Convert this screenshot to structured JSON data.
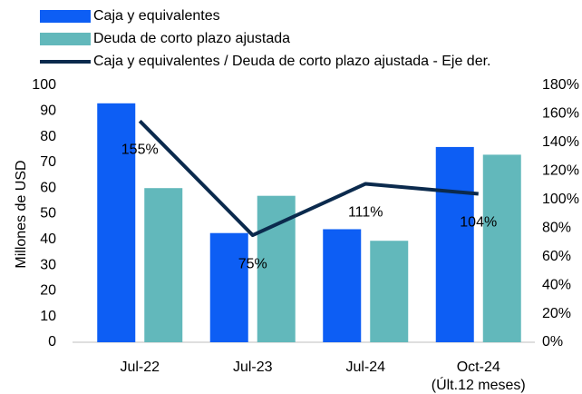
{
  "chart_data": {
    "type": "bar-line",
    "categories": [
      "Jul-22",
      "Jul-23",
      "Jul-24",
      "Oct-24\n(Últ.12 meses)"
    ],
    "ylabel": "Millones de USD",
    "ylim": [
      0,
      100
    ],
    "yticks": [
      0,
      10,
      20,
      30,
      40,
      50,
      60,
      70,
      80,
      90,
      100
    ],
    "y2lim": [
      0,
      180
    ],
    "y2ticks": [
      {
        "value": 0,
        "label": "0%"
      },
      {
        "value": 20,
        "label": "20%"
      },
      {
        "value": 40,
        "label": "40%"
      },
      {
        "value": 60,
        "label": "60%"
      },
      {
        "value": 80,
        "label": "80%"
      },
      {
        "value": 100,
        "label": "100%"
      },
      {
        "value": 120,
        "label": "120%"
      },
      {
        "value": 140,
        "label": "140%"
      },
      {
        "value": 160,
        "label": "160%"
      },
      {
        "value": 180,
        "label": "180%"
      }
    ],
    "grid": false,
    "legend": "top-left",
    "series": [
      {
        "name": "Caja y equivalentes",
        "type": "bar",
        "color": "#0d5ef4",
        "values": [
          93,
          42.5,
          44,
          76
        ]
      },
      {
        "name": "Deuda de corto plazo ajustada",
        "type": "bar",
        "color": "#62b8bb",
        "values": [
          60,
          57,
          39.5,
          73
        ]
      },
      {
        "name": "Caja y equivalentes / Deuda de corto plazo ajustada - Eje der.",
        "type": "line",
        "axis": "y2",
        "color": "#0b2a4d",
        "values": [
          155,
          75,
          111,
          104
        ],
        "value_labels": [
          "155%",
          "75%",
          "111%",
          "104%"
        ]
      }
    ]
  }
}
